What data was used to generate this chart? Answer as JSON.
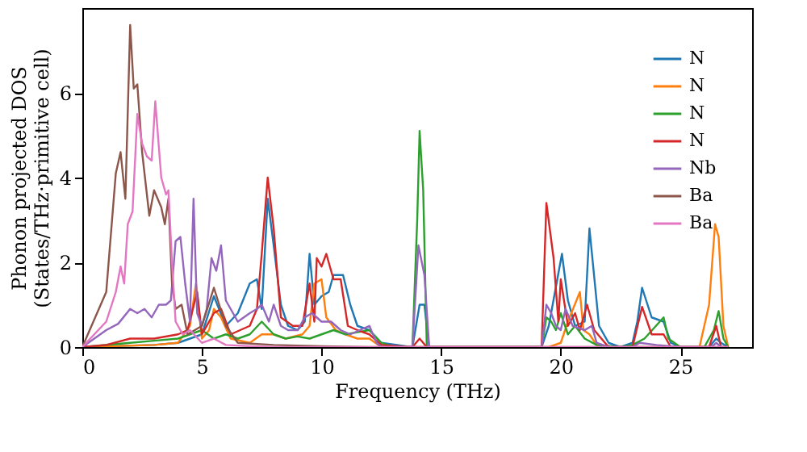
{
  "chart_data": {
    "type": "line",
    "xlabel": "Frequency (THz)",
    "ylabel": "Phonon projected DOS\n(States/THz·primitive cell)",
    "xlim": [
      0,
      28
    ],
    "ylim": [
      0,
      8
    ],
    "xticks": [
      0,
      5,
      10,
      15,
      20,
      25
    ],
    "yticks": [
      0,
      2,
      4,
      6
    ],
    "grid": false,
    "legend": "top right",
    "marker": "none",
    "line_style": "solid",
    "series": [
      {
        "name": "N",
        "color": "#1f77b4",
        "x": [
          0,
          3,
          4,
          5,
          5.5,
          6,
          6.5,
          7,
          7.3,
          7.5,
          7.75,
          8.0,
          8.3,
          8.6,
          9.0,
          9.3,
          9.5,
          9.7,
          10.0,
          10.3,
          10.5,
          10.9,
          11.2,
          11.5,
          12,
          12.5,
          13.8,
          14.1,
          14.3,
          14.5,
          19.2,
          19.5,
          20.05,
          20.3,
          20.6,
          21.0,
          21.2,
          21.6,
          22,
          22.5,
          23,
          23.2,
          23.4,
          23.8,
          24.3,
          24.6,
          25,
          26.2,
          26.5,
          26.7,
          27
        ],
        "values": [
          0,
          0.05,
          0.1,
          0.3,
          1.2,
          0.5,
          0.8,
          1.5,
          1.6,
          0.9,
          3.5,
          2.4,
          1.0,
          0.5,
          0.4,
          0.6,
          2.2,
          1.0,
          1.2,
          1.3,
          1.7,
          1.7,
          1.0,
          0.5,
          0.4,
          0.1,
          0,
          1.0,
          1.0,
          0,
          0,
          0.5,
          2.2,
          1.1,
          0.5,
          0.6,
          2.8,
          0.5,
          0.1,
          0,
          0.1,
          0.6,
          1.4,
          0.7,
          0.6,
          0.1,
          0,
          0,
          0.2,
          0.1,
          0
        ]
      },
      {
        "name": "N",
        "color": "#ff7f0e",
        "x": [
          0,
          3,
          4,
          4.5,
          4.75,
          5.0,
          5.3,
          5.5,
          5.8,
          6.2,
          7,
          7.5,
          8,
          8.5,
          9.2,
          9.5,
          9.7,
          10.0,
          10.2,
          10.6,
          11,
          11.5,
          12,
          12.5,
          19.5,
          20,
          20.3,
          20.8,
          20.95,
          21.2,
          21.5,
          22,
          25.8,
          26.2,
          26.45,
          26.6,
          26.8,
          27
        ],
        "values": [
          0,
          0.05,
          0.1,
          0.5,
          1.5,
          0.2,
          0.4,
          0.9,
          0.7,
          0.2,
          0.1,
          0.3,
          0.3,
          0.2,
          0.3,
          0.5,
          1.5,
          1.6,
          0.7,
          0.4,
          0.3,
          0.2,
          0.2,
          0,
          0,
          0.1,
          0.6,
          1.3,
          0.4,
          0.3,
          0.05,
          0,
          0,
          1.0,
          2.9,
          2.6,
          0.5,
          0
        ]
      },
      {
        "name": "N",
        "color": "#2ca02c",
        "x": [
          0,
          2,
          3,
          4,
          4.5,
          5,
          5.5,
          6,
          6.5,
          7,
          7.5,
          8,
          8.5,
          9,
          9.5,
          10,
          10.5,
          11,
          11.5,
          12,
          12.5,
          13,
          13.8,
          14.0,
          14.1,
          14.25,
          14.4,
          19.2,
          19.4,
          19.6,
          19.8,
          20,
          20.3,
          20.6,
          21,
          21.5,
          22.5,
          23,
          23.5,
          24.3,
          24.5,
          25,
          26,
          26.4,
          26.6,
          26.8,
          27
        ],
        "values": [
          0,
          0.1,
          0.15,
          0.2,
          0.3,
          0.4,
          0.2,
          0.3,
          0.2,
          0.3,
          0.6,
          0.3,
          0.2,
          0.25,
          0.2,
          0.3,
          0.4,
          0.3,
          0.35,
          0.4,
          0.1,
          0,
          0,
          3.0,
          5.1,
          3.7,
          0,
          0,
          0.7,
          0.6,
          0.4,
          0.8,
          0.3,
          0.5,
          0.2,
          0.05,
          0,
          0.05,
          0.2,
          0.7,
          0.2,
          0,
          0,
          0.4,
          0.85,
          0.2,
          0
        ]
      },
      {
        "name": "N",
        "color": "#d62728",
        "x": [
          0,
          1,
          2,
          3,
          4,
          4.4,
          4.8,
          5.0,
          5.5,
          5.8,
          6.2,
          7,
          7.3,
          7.5,
          7.75,
          8.0,
          8.3,
          8.8,
          9.2,
          9.5,
          9.7,
          9.8,
          10.0,
          10.2,
          10.5,
          10.8,
          11.1,
          11.5,
          12,
          12.5,
          13.8,
          14.1,
          14.4,
          19.2,
          19.4,
          19.7,
          19.9,
          20.0,
          20.3,
          20.6,
          20.8,
          21.1,
          21.4,
          22,
          23,
          23.4,
          23.8,
          24.3,
          24.6,
          26.2,
          26.5,
          26.7,
          27
        ],
        "values": [
          0,
          0.05,
          0.2,
          0.2,
          0.3,
          0.4,
          1.3,
          0.3,
          0.8,
          0.9,
          0.3,
          0.5,
          0.9,
          2.2,
          4.0,
          2.8,
          0.7,
          0.5,
          0.5,
          1.5,
          0.6,
          2.1,
          1.9,
          2.2,
          1.6,
          1.6,
          0.5,
          0.4,
          0.3,
          0.05,
          0,
          0.2,
          0,
          0,
          3.4,
          2.1,
          0.6,
          1.6,
          0.5,
          0.8,
          0.4,
          1.0,
          0.4,
          0,
          0,
          0.95,
          0.3,
          0.3,
          0,
          0,
          0.5,
          0,
          0
        ]
      },
      {
        "name": "Nb",
        "color": "#9467bd",
        "x": [
          0,
          1,
          1.5,
          2,
          2.3,
          2.6,
          2.9,
          3.2,
          3.5,
          3.7,
          3.9,
          4.1,
          4.3,
          4.5,
          4.65,
          4.8,
          5.0,
          5.2,
          5.4,
          5.6,
          5.8,
          6.0,
          6.5,
          7,
          7.3,
          7.5,
          7.8,
          8,
          8.3,
          8.6,
          9.0,
          9.3,
          9.6,
          10,
          10.4,
          10.8,
          11.2,
          11.6,
          12,
          12.3,
          12.5,
          13.8,
          14.05,
          14.3,
          14.5,
          19.2,
          19.4,
          19.6,
          19.8,
          20.0,
          20.2,
          20.5,
          21,
          21.3,
          21.5,
          22,
          23,
          23.3,
          24,
          25,
          26.3,
          26.5,
          26.7,
          27
        ],
        "values": [
          0,
          0.4,
          0.55,
          0.9,
          0.8,
          0.9,
          0.7,
          1.0,
          1.0,
          1.1,
          2.5,
          2.6,
          1.5,
          0.6,
          3.5,
          0.8,
          0.5,
          0.9,
          2.1,
          1.8,
          2.4,
          1.1,
          0.6,
          0.8,
          0.9,
          1.0,
          0.6,
          1.0,
          0.5,
          0.4,
          0.4,
          0.7,
          0.8,
          0.6,
          0.6,
          0.4,
          0.3,
          0.4,
          0.5,
          0.1,
          0,
          0,
          2.4,
          1.7,
          0,
          0,
          1.0,
          0.8,
          0.5,
          0.4,
          0.9,
          0.5,
          0.4,
          0.5,
          0.1,
          0,
          0,
          0.1,
          0.05,
          0,
          0,
          0.1,
          0,
          0
        ]
      },
      {
        "name": "Ba",
        "color": "#8c564b",
        "x": [
          0,
          1.0,
          1.4,
          1.6,
          1.8,
          2.0,
          2.15,
          2.3,
          2.5,
          2.8,
          3.0,
          3.3,
          3.45,
          3.6,
          3.75,
          3.9,
          4.15,
          4.4,
          5,
          5.5,
          6,
          6.5,
          8,
          10,
          12,
          27
        ],
        "values": [
          0,
          1.3,
          4.1,
          4.6,
          3.5,
          7.6,
          6.1,
          6.2,
          4.6,
          3.1,
          3.7,
          3.3,
          2.9,
          3.5,
          1.5,
          0.9,
          1.0,
          0.3,
          0.5,
          1.4,
          0.5,
          0.1,
          0.05,
          0.02,
          0,
          0
        ]
      },
      {
        "name": "Ba",
        "color": "#e377c2",
        "x": [
          0,
          1,
          1.4,
          1.6,
          1.75,
          1.9,
          2.1,
          2.3,
          2.5,
          2.7,
          2.9,
          3.05,
          3.3,
          3.5,
          3.6,
          3.75,
          3.9,
          4.2,
          4.5,
          5,
          5.5,
          6,
          7,
          8,
          27
        ],
        "values": [
          0,
          0.6,
          1.3,
          1.9,
          1.5,
          2.9,
          3.2,
          5.5,
          4.8,
          4.5,
          4.4,
          5.8,
          4.0,
          3.6,
          3.7,
          2.0,
          0.6,
          0.3,
          0.4,
          0.1,
          0.2,
          0.05,
          0.02,
          0,
          0
        ]
      }
    ]
  }
}
